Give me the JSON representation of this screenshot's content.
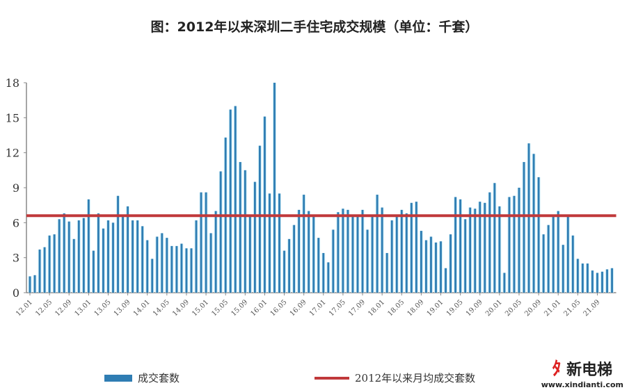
{
  "chart_data": {
    "type": "bar",
    "title": "图：2012年以来深圳二手住宅成交规模（单位：千套）",
    "xlabel": "",
    "ylabel": "",
    "ylim": [
      0,
      18
    ],
    "yticks": [
      0,
      3,
      6,
      9,
      12,
      15,
      18
    ],
    "xtick_labels": [
      "12.01",
      "12.05",
      "12.09",
      "13.01",
      "13.05",
      "13.09",
      "14.01",
      "14.05",
      "14.09",
      "15.01",
      "15.05",
      "15.09",
      "16.01",
      "16.05",
      "16.09",
      "17.01",
      "17.05",
      "17.09",
      "18.01",
      "18.05",
      "18.09",
      "19.01",
      "19.05",
      "19.09",
      "20.01",
      "20.05",
      "20.09",
      "21.01",
      "21.05",
      "21.09"
    ],
    "grid": false,
    "legend_position": "bottom",
    "series": [
      {
        "name": "成交套数",
        "type": "bar",
        "color": "#2f7db3",
        "values": [
          1.4,
          1.5,
          3.7,
          3.9,
          4.9,
          5.0,
          6.3,
          6.8,
          6.1,
          4.6,
          6.2,
          6.4,
          8.0,
          3.6,
          6.8,
          5.5,
          6.2,
          6.0,
          8.3,
          6.7,
          7.4,
          6.2,
          6.2,
          5.7,
          4.5,
          2.9,
          4.8,
          5.1,
          4.7,
          4.0,
          4.0,
          4.2,
          3.8,
          3.8,
          6.2,
          8.6,
          8.6,
          5.1,
          7.0,
          10.4,
          13.3,
          15.7,
          16.0,
          11.2,
          10.5,
          6.5,
          9.5,
          12.6,
          15.1,
          8.5,
          18.0,
          8.5,
          3.6,
          4.6,
          5.8,
          7.1,
          8.4,
          7.0,
          6.6,
          4.7,
          3.4,
          2.6,
          5.4,
          6.9,
          7.2,
          7.1,
          6.6,
          6.5,
          7.1,
          5.4,
          6.6,
          8.4,
          7.3,
          3.4,
          6.2,
          6.6,
          7.1,
          6.8,
          7.7,
          7.8,
          5.3,
          4.5,
          4.8,
          4.3,
          4.4,
          2.1,
          5.0,
          8.2,
          8.0,
          6.3,
          7.3,
          7.2,
          7.8,
          7.7,
          8.6,
          9.4,
          7.4,
          1.7,
          8.2,
          8.3,
          9.0,
          11.2,
          12.8,
          11.9,
          9.9,
          5.0,
          5.8,
          6.7,
          7.0,
          4.1,
          6.7,
          4.9,
          2.9,
          2.5,
          2.5,
          1.9,
          1.7,
          1.8,
          2.0,
          2.1
        ]
      },
      {
        "name": "2012年以来月均成交套数",
        "type": "line",
        "color": "#c0393b",
        "value": 6.6
      }
    ],
    "first_month": "12.01"
  },
  "watermark": {
    "name": "新电梯",
    "url": "www.xindianti.com"
  }
}
